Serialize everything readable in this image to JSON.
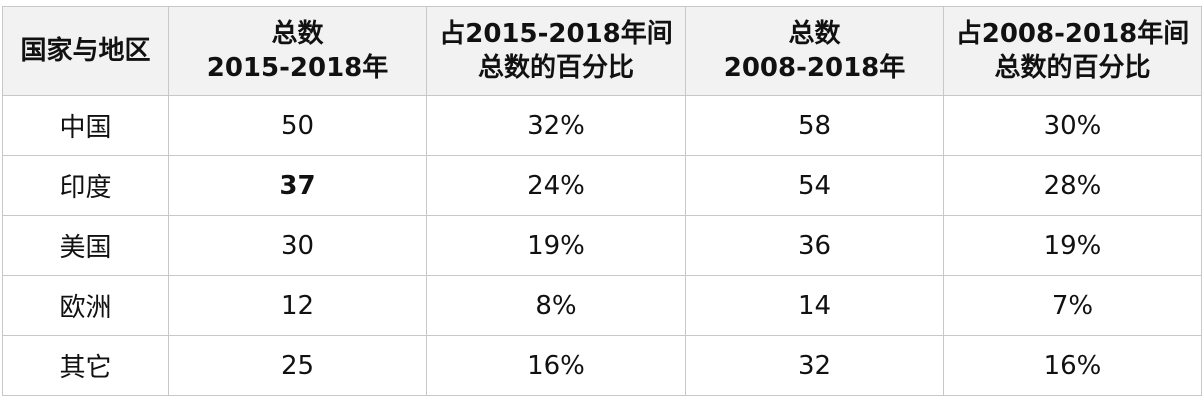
{
  "table": {
    "header": [
      [
        "国家与地区"
      ],
      [
        "总数",
        "2015-2018年"
      ],
      [
        "占2015-2018年间",
        "总数的百分比"
      ],
      [
        "总数",
        "2008-2018年"
      ],
      [
        "占2008-2018年间",
        "总数的百分比"
      ]
    ],
    "rows": [
      [
        "中国",
        "50",
        "32%",
        "58",
        "30%"
      ],
      [
        "印度",
        "37",
        "24%",
        "54",
        "28%"
      ],
      [
        "美国",
        "30",
        "19%",
        "36",
        "19%"
      ],
      [
        "欧洲",
        "12",
        "8%",
        "14",
        "7%"
      ],
      [
        "其它",
        "25",
        "16%",
        "32",
        "16%"
      ]
    ]
  }
}
